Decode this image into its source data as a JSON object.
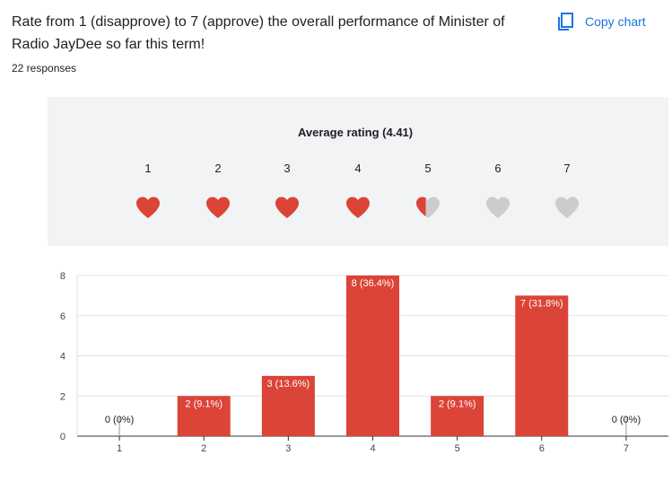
{
  "question": {
    "text": "Rate from 1 (disapprove) to 7 (approve) the overall performance of Minister of Radio JayDee so far this term!",
    "responses": "22 responses"
  },
  "toolbar": {
    "copy_label": "Copy chart",
    "copy_icon": "copy-icon"
  },
  "rating": {
    "title": "Average rating (4.41)",
    "average": 4.41,
    "scale": [
      "1",
      "2",
      "3",
      "4",
      "5",
      "6",
      "7"
    ],
    "colors": {
      "filled": "#db4437",
      "empty": "#cccccc"
    }
  },
  "colors": {
    "bar": "#db4437",
    "accent": "#1a73e8"
  },
  "chart_data": {
    "type": "bar",
    "categories": [
      "1",
      "2",
      "3",
      "4",
      "5",
      "6",
      "7"
    ],
    "values": [
      0,
      2,
      3,
      8,
      2,
      7,
      0
    ],
    "data_labels": [
      "0 (0%)",
      "2 (9.1%)",
      "3 (13.6%)",
      "8 (36.4%)",
      "2 (9.1%)",
      "7 (31.8%)",
      "0 (0%)"
    ],
    "yticks": [
      "0",
      "2",
      "4",
      "6",
      "8"
    ],
    "ylim": [
      0,
      8
    ],
    "grid": true,
    "xlabel": "",
    "ylabel": ""
  }
}
